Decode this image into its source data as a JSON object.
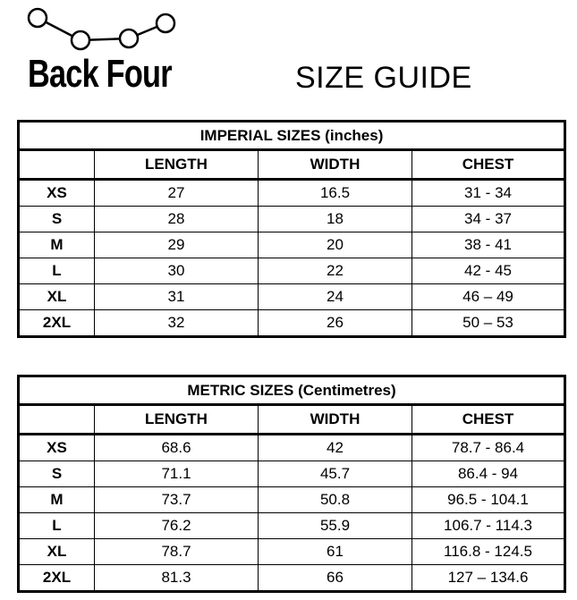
{
  "brand": {
    "name": "Back Four",
    "logo_icon": "four-linked-circles-icon"
  },
  "title": "SIZE GUIDE",
  "tables": [
    {
      "caption": "IMPERIAL SIZES (inches)",
      "headers": [
        "",
        "LENGTH",
        "WIDTH",
        "CHEST"
      ],
      "rows": [
        [
          "XS",
          "27",
          "16.5",
          "31 - 34"
        ],
        [
          "S",
          "28",
          "18",
          "34 - 37"
        ],
        [
          "M",
          "29",
          "20",
          "38 - 41"
        ],
        [
          "L",
          "30",
          "22",
          "42 - 45"
        ],
        [
          "XL",
          "31",
          "24",
          "46 – 49"
        ],
        [
          "2XL",
          "32",
          "26",
          "50 – 53"
        ]
      ]
    },
    {
      "caption": "METRIC SIZES (Centimetres)",
      "headers": [
        "",
        "LENGTH",
        "WIDTH",
        "CHEST"
      ],
      "rows": [
        [
          "XS",
          "68.6",
          "42",
          "78.7 - 86.4"
        ],
        [
          "S",
          "71.1",
          "45.7",
          "86.4 - 94"
        ],
        [
          "M",
          "73.7",
          "50.8",
          "96.5 - 104.1"
        ],
        [
          "L",
          "76.2",
          "55.9",
          "106.7 - 114.3"
        ],
        [
          "XL",
          "78.7",
          "61",
          "116.8 - 124.5"
        ],
        [
          "2XL",
          "81.3",
          "66",
          "127 – 134.6"
        ]
      ]
    }
  ]
}
